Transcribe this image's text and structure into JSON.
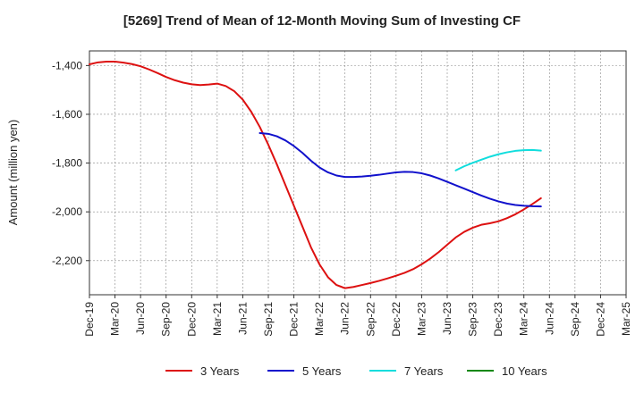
{
  "chart_data": {
    "type": "line",
    "title": "[5269]  Trend of Mean of 12-Month Moving Sum of Investing CF",
    "ylabel": "Amount (million yen)",
    "xlabel": "",
    "ylim": [
      -2340,
      -1340
    ],
    "y_ticks": [
      -2200,
      -2000,
      -1800,
      -1600,
      -1400
    ],
    "y_tick_labels": [
      "-2,200",
      "-2,000",
      "-1,800",
      "-1,600",
      "-1,400"
    ],
    "x_range_months": [
      "Dec-19",
      "Mar-25"
    ],
    "x_tick_labels": [
      "Dec-19",
      "Mar-20",
      "Jun-20",
      "Sep-20",
      "Dec-20",
      "Mar-21",
      "Jun-21",
      "Sep-21",
      "Dec-21",
      "Mar-22",
      "Jun-22",
      "Sep-22",
      "Dec-22",
      "Mar-23",
      "Jun-23",
      "Sep-23",
      "Dec-23",
      "Mar-24",
      "Jun-24",
      "Sep-24",
      "Dec-24",
      "Mar-25"
    ],
    "grid": true,
    "legend_position": "bottom",
    "series": [
      {
        "name": "3 Years",
        "color": "#dd1111",
        "points": [
          [
            "Dec-19",
            -1395
          ],
          [
            "Jan-20",
            -1387
          ],
          [
            "Feb-20",
            -1384
          ],
          [
            "Mar-20",
            -1384
          ],
          [
            "Apr-20",
            -1388
          ],
          [
            "May-20",
            -1394
          ],
          [
            "Jun-20",
            -1403
          ],
          [
            "Jul-20",
            -1416
          ],
          [
            "Aug-20",
            -1431
          ],
          [
            "Sep-20",
            -1447
          ],
          [
            "Oct-20",
            -1460
          ],
          [
            "Nov-20",
            -1470
          ],
          [
            "Dec-20",
            -1477
          ],
          [
            "Jan-21",
            -1480
          ],
          [
            "Feb-21",
            -1478
          ],
          [
            "Mar-21",
            -1474
          ],
          [
            "Apr-21",
            -1484
          ],
          [
            "May-21",
            -1505
          ],
          [
            "Jun-21",
            -1540
          ],
          [
            "Jul-21",
            -1590
          ],
          [
            "Aug-21",
            -1652
          ],
          [
            "Sep-21",
            -1725
          ],
          [
            "Oct-21",
            -1805
          ],
          [
            "Nov-21",
            -1890
          ],
          [
            "Dec-21",
            -1975
          ],
          [
            "Jan-22",
            -2060
          ],
          [
            "Feb-22",
            -2145
          ],
          [
            "Mar-22",
            -2215
          ],
          [
            "Apr-22",
            -2268
          ],
          [
            "May-22",
            -2300
          ],
          [
            "Jun-22",
            -2313
          ],
          [
            "Jul-22",
            -2308
          ],
          [
            "Aug-22",
            -2300
          ],
          [
            "Sep-22",
            -2292
          ],
          [
            "Oct-22",
            -2283
          ],
          [
            "Nov-22",
            -2273
          ],
          [
            "Dec-22",
            -2262
          ],
          [
            "Jan-23",
            -2250
          ],
          [
            "Feb-23",
            -2235
          ],
          [
            "Mar-23",
            -2215
          ],
          [
            "Apr-23",
            -2192
          ],
          [
            "May-23",
            -2165
          ],
          [
            "Jun-23",
            -2135
          ],
          [
            "Jul-23",
            -2105
          ],
          [
            "Aug-23",
            -2082
          ],
          [
            "Sep-23",
            -2065
          ],
          [
            "Oct-23",
            -2053
          ],
          [
            "Nov-23",
            -2047
          ],
          [
            "Dec-23",
            -2039
          ],
          [
            "Jan-24",
            -2026
          ],
          [
            "Feb-24",
            -2010
          ],
          [
            "Mar-24",
            -1990
          ],
          [
            "Apr-24",
            -1968
          ],
          [
            "May-24",
            -1944
          ]
        ]
      },
      {
        "name": "5 Years",
        "color": "#1111cc",
        "points": [
          [
            "Aug-21",
            -1677
          ],
          [
            "Sep-21",
            -1680
          ],
          [
            "Oct-21",
            -1690
          ],
          [
            "Nov-21",
            -1707
          ],
          [
            "Dec-21",
            -1730
          ],
          [
            "Jan-22",
            -1758
          ],
          [
            "Feb-22",
            -1790
          ],
          [
            "Mar-22",
            -1818
          ],
          [
            "Apr-22",
            -1838
          ],
          [
            "May-22",
            -1851
          ],
          [
            "Jun-22",
            -1857
          ],
          [
            "Jul-22",
            -1857
          ],
          [
            "Aug-22",
            -1855
          ],
          [
            "Sep-22",
            -1852
          ],
          [
            "Oct-22",
            -1848
          ],
          [
            "Nov-22",
            -1843
          ],
          [
            "Dec-22",
            -1838
          ],
          [
            "Jan-23",
            -1836
          ],
          [
            "Feb-23",
            -1837
          ],
          [
            "Mar-23",
            -1842
          ],
          [
            "Apr-23",
            -1851
          ],
          [
            "May-23",
            -1863
          ],
          [
            "Jun-23",
            -1877
          ],
          [
            "Jul-23",
            -1891
          ],
          [
            "Aug-23",
            -1905
          ],
          [
            "Sep-23",
            -1919
          ],
          [
            "Oct-23",
            -1933
          ],
          [
            "Nov-23",
            -1946
          ],
          [
            "Dec-23",
            -1957
          ],
          [
            "Jan-24",
            -1966
          ],
          [
            "Feb-24",
            -1972
          ],
          [
            "Mar-24",
            -1975
          ],
          [
            "Apr-24",
            -1977
          ],
          [
            "May-24",
            -1978
          ]
        ]
      },
      {
        "name": "7 Years",
        "color": "#11dddd",
        "points": [
          [
            "Jul-23",
            -1830
          ],
          [
            "Aug-23",
            -1813
          ],
          [
            "Sep-23",
            -1799
          ],
          [
            "Oct-23",
            -1786
          ],
          [
            "Nov-23",
            -1774
          ],
          [
            "Dec-23",
            -1764
          ],
          [
            "Jan-24",
            -1756
          ],
          [
            "Feb-24",
            -1750
          ],
          [
            "Mar-24",
            -1747
          ],
          [
            "Apr-24",
            -1746
          ],
          [
            "May-24",
            -1749
          ]
        ]
      },
      {
        "name": "10 Years",
        "color": "#118811",
        "points": []
      }
    ]
  }
}
